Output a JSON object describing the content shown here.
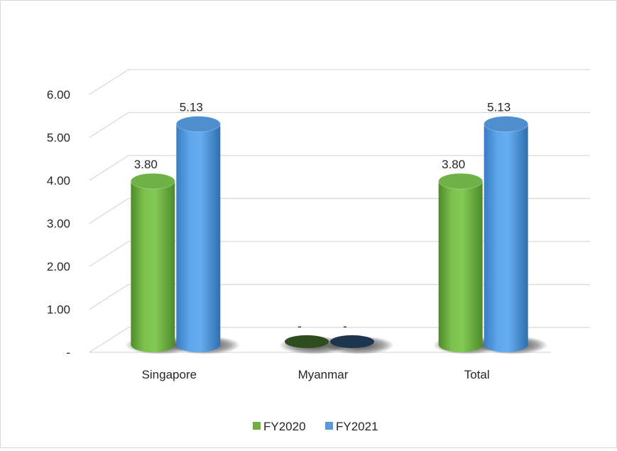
{
  "chart_data": {
    "type": "bar",
    "style": "3d-cylinder",
    "categories": [
      "Singapore",
      "Myanmar",
      "Total"
    ],
    "series": [
      {
        "name": "FY2020",
        "values": [
          3.8,
          0,
          3.8
        ],
        "labels": [
          "3.80",
          "-",
          "3.80"
        ],
        "color": "#70ad47"
      },
      {
        "name": "FY2021",
        "values": [
          5.13,
          0,
          5.13
        ],
        "labels": [
          "5.13",
          "-",
          "5.13"
        ],
        "color": "#5b9bd5"
      }
    ],
    "ylim": [
      0,
      6
    ],
    "yticks": [
      {
        "value": 0,
        "label": "-"
      },
      {
        "value": 1,
        "label": "1.00"
      },
      {
        "value": 2,
        "label": "2.00"
      },
      {
        "value": 3,
        "label": "3.00"
      },
      {
        "value": 4,
        "label": "4.00"
      },
      {
        "value": 5,
        "label": "5.00"
      },
      {
        "value": 6,
        "label": "6.00"
      }
    ],
    "grid": true,
    "legend": "bottom",
    "title": "",
    "xlabel": "",
    "ylabel": ""
  }
}
